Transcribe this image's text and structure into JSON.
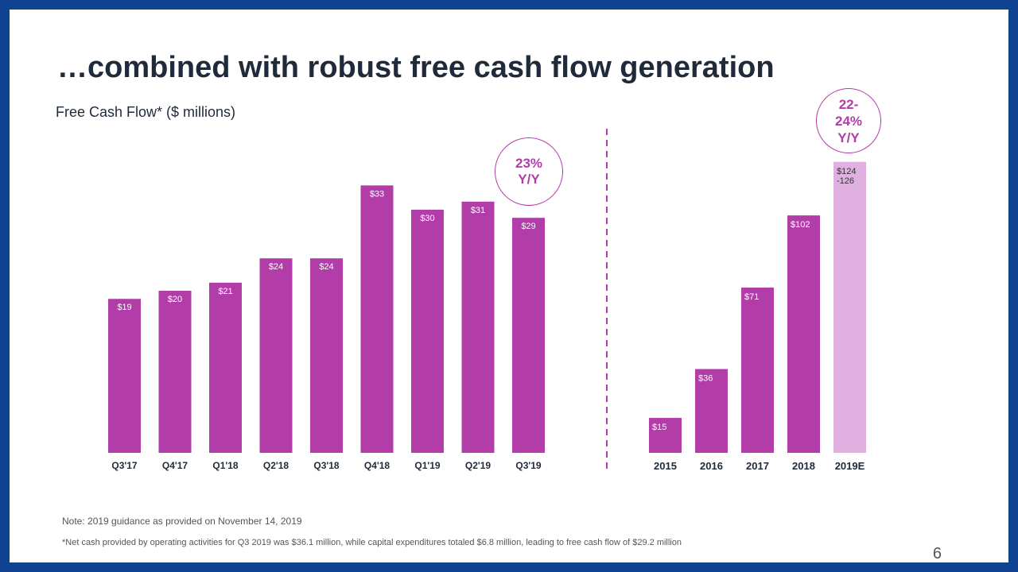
{
  "slide": {
    "title": "…combined with robust free cash flow generation",
    "subtitle": "Free Cash Flow* ($ millions)",
    "callout_quarterly": {
      "line1": "23%",
      "line2": "Y/Y"
    },
    "callout_annual": {
      "line1": "22-",
      "line2": "24%",
      "line3": "Y/Y"
    },
    "note": "Note: 2019 guidance as provided on November 14, 2019",
    "footnote": "*Net cash provided by operating activities for Q3 2019 was $36.1 million, while capital expenditures totaled $6.8 million, leading to free cash flow of $29.2 million",
    "page_number": "6"
  },
  "colors": {
    "bar": "#b23ca8",
    "bar_estimate": "#e0b0e0",
    "frame": "#0f4391",
    "divider": "#b23ca8"
  },
  "chart_data": [
    {
      "type": "bar",
      "title": "Free Cash Flow* ($ millions)",
      "categories": [
        "Q3'17",
        "Q4'17",
        "Q1'18",
        "Q2'18",
        "Q3'18",
        "Q4'18",
        "Q1'19",
        "Q2'19",
        "Q3'19"
      ],
      "values": [
        19,
        20,
        21,
        24,
        24,
        33,
        30,
        31,
        29
      ],
      "data_labels": [
        "$19",
        "$20",
        "$21",
        "$24",
        "$24",
        "$33",
        "$30",
        "$31",
        "$29"
      ],
      "annotation": "23% Y/Y",
      "grid": false,
      "legend": "none"
    },
    {
      "type": "bar",
      "categories": [
        "2015",
        "2016",
        "2017",
        "2018",
        "2019E"
      ],
      "values": [
        15,
        36,
        71,
        102,
        125
      ],
      "data_labels": [
        "$15",
        "$36",
        "$71",
        "$102",
        "$124 -126"
      ],
      "estimate_range": [
        124,
        126
      ],
      "annotation": "22-24% Y/Y",
      "grid": false,
      "legend": "none"
    }
  ]
}
